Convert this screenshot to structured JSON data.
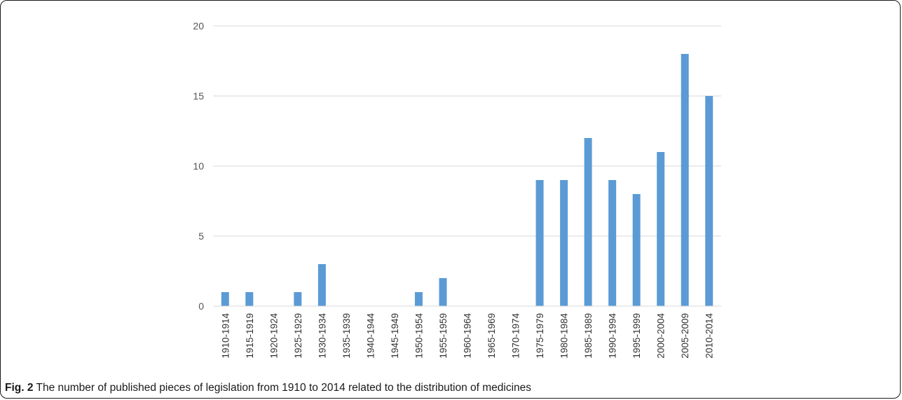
{
  "caption": {
    "figure_label": "Fig. 2",
    "text": "The number of published pieces of legislation from 1910 to 2014 related to the distribution of medicines"
  },
  "chart_data": {
    "type": "bar",
    "categories": [
      "1910-1914",
      "1915-1919",
      "1920-1924",
      "1925-1929",
      "1930-1934",
      "1935-1939",
      "1940-1944",
      "1945-1949",
      "1950-1954",
      "1955-1959",
      "1960-1964",
      "1965-1969",
      "1970-1974",
      "1975-1979",
      "1980-1984",
      "1985-1989",
      "1990-1994",
      "1995-1999",
      "2000-2004",
      "2005-2009",
      "2010-2014"
    ],
    "values": [
      1,
      1,
      0,
      1,
      3,
      0,
      0,
      0,
      1,
      2,
      0,
      0,
      0,
      9,
      9,
      12,
      9,
      8,
      11,
      18,
      15
    ],
    "title": "",
    "xlabel": "",
    "ylabel": "",
    "ylim": [
      0,
      20
    ],
    "yticks": [
      0,
      5,
      10,
      15,
      20
    ],
    "grid": true,
    "bar_color": "#5b9bd5",
    "grid_color": "#d9d9d9"
  }
}
